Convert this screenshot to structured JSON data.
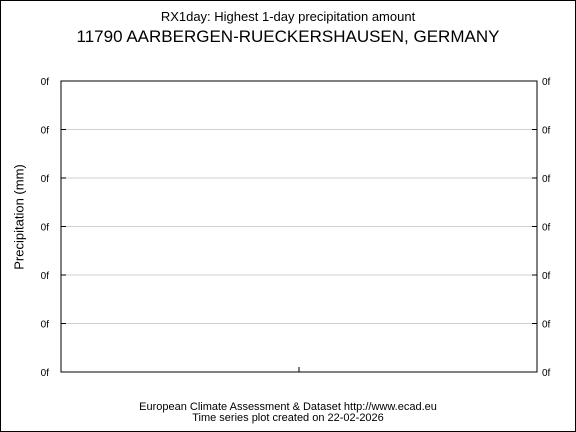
{
  "chart_data": {
    "type": "line",
    "title": "RX1day: Highest 1-day precipitation amount",
    "subtitle": "11790 AARBERGEN-RUECKERSHAUSEN, GERMANY",
    "ylabel": "Precipitation (mm)",
    "xlabel": "",
    "y_tick_labels": [
      "0f",
      "0f",
      "0f",
      "0f",
      "0f",
      "0f",
      "0f"
    ],
    "x_tick_labels": [],
    "series": [],
    "grid": true,
    "colors": {
      "grid": "#d0d0d0",
      "axis": "#000000",
      "background": "#ffffff"
    }
  },
  "footer": {
    "line1": "European Climate Assessment & Dataset  http://www.ecad.eu",
    "line2": "Time series plot created on 22-02-2026"
  }
}
